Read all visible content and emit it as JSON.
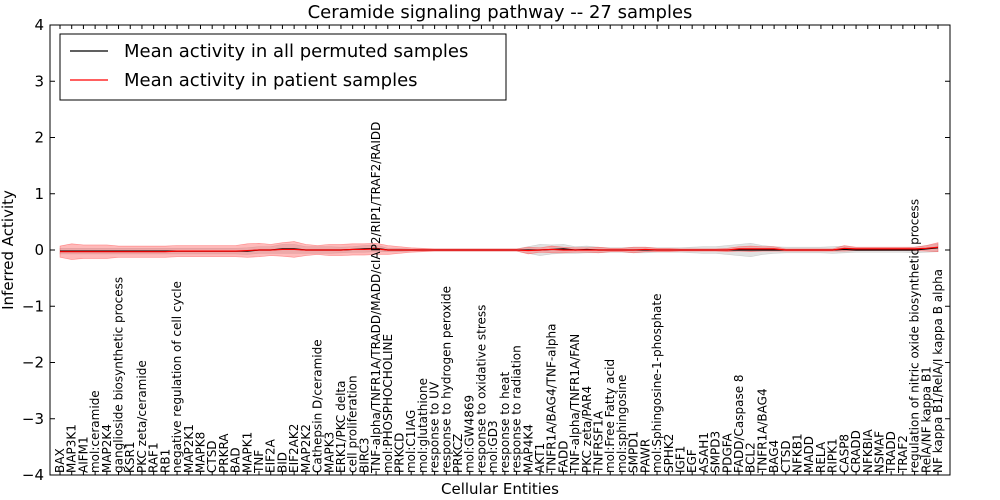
{
  "chart_data": {
    "type": "line",
    "title": "Ceramide signaling pathway -- 27 samples",
    "xlabel": "Cellular Entities",
    "ylabel": "Inferred Activity",
    "ylim": [
      -4,
      4
    ],
    "yticks": [
      4,
      3,
      2,
      1,
      0,
      -1,
      -2,
      -3,
      -4
    ],
    "ytick_labels": [
      "4",
      "3",
      "2",
      "1",
      "0",
      "−1",
      "−2",
      "−3",
      "−4"
    ],
    "legend_position": "upper-left",
    "categories": [
      "BAX",
      "MAP3K1",
      "AIFM1",
      "mol:ceramide",
      "MAP2K4",
      "ganglioside biosynthetic process",
      "KSR1",
      "PKC zeta/ceramide",
      "RAF1",
      "RB1",
      "negative regulation of cell cycle",
      "MAP2K1",
      "MAPK8",
      "CTSD",
      "PRKRA",
      "BAD",
      "MAPK1",
      "TNF",
      "EIF2A",
      "BID",
      "EIF2AK2",
      "MAP2K2",
      "Cathepsin D/ceramide",
      "MAPK3",
      "ERK1/PKC delta",
      "cell proliferation",
      "BIRC3",
      "TNF-alpha/TNFR1A/TRADD/MADD/cIAP2/RIP1/TRAF2/RAIDD",
      "mol:PHOSPHOCHOLINE",
      "PRKCD",
      "mol:C1IAG",
      "mol:glutathione",
      "response to UV",
      "response to hydrogen peroxide",
      "PRKCZ",
      "mol:GW4869",
      "response to oxidative stress",
      "mol:GD3",
      "response to heat",
      "response to radiation",
      "MAP4K4",
      "AKT1",
      "TNFR1A/BAG4/TNF-alpha",
      "FADD",
      "TNF-alpha/TNFR1A/FAN",
      "PKC zeta/PAR4",
      "TNFRSF1A",
      "mol:Free Fatty acid",
      "mol:sphingosine",
      "SMPD1",
      "PAWR",
      "mol:Sphingosine-1-phosphate",
      "SPHK2",
      "IGF1",
      "EGF",
      "ASAH1",
      "SMPD3",
      "PDGFA",
      "FADD/Caspase 8",
      "BCL2",
      "TNFR1A/BAG4",
      "BAG4",
      "CTSD",
      "NFKB1",
      "MADD",
      "RELA",
      "RIPK1",
      "CASP8",
      "CRADD",
      "NFKBIA",
      "NSMAF",
      "TRADD",
      "TRAF2",
      "regulation of nitric oxide biosynthetic process",
      "RelA/NF kappa B1",
      "NF kappa B1/RelA/I kappa B alpha"
    ],
    "series": [
      {
        "name": "Mean activity in all permuted samples",
        "color": "#000000",
        "values": [
          -0.02,
          -0.02,
          -0.02,
          -0.02,
          -0.02,
          -0.02,
          -0.02,
          -0.02,
          -0.02,
          -0.02,
          -0.02,
          -0.02,
          -0.02,
          -0.02,
          -0.02,
          -0.02,
          -0.02,
          0.0,
          0.0,
          0.02,
          0.02,
          0.0,
          0.0,
          0.0,
          0.0,
          0.01,
          0.02,
          0.03,
          0.0,
          0.0,
          0.0,
          0.0,
          0.0,
          0.0,
          0.0,
          0.0,
          0.0,
          0.0,
          0.0,
          0.0,
          0.0,
          0.0,
          0.01,
          0.02,
          0.0,
          0.01,
          0.0,
          0.0,
          0.0,
          0.0,
          0.0,
          0.0,
          0.0,
          0.0,
          0.0,
          0.0,
          0.0,
          0.0,
          0.0,
          0.0,
          0.0,
          0.0,
          0.0,
          0.0,
          0.0,
          0.0,
          0.0,
          0.01,
          0.0,
          0.0,
          0.0,
          0.0,
          0.0,
          0.0,
          0.02,
          0.04
        ],
        "band": [
          0.05,
          0.05,
          0.05,
          0.05,
          0.05,
          0.05,
          0.05,
          0.05,
          0.05,
          0.05,
          0.05,
          0.05,
          0.05,
          0.05,
          0.05,
          0.05,
          0.06,
          0.06,
          0.06,
          0.08,
          0.08,
          0.06,
          0.06,
          0.06,
          0.05,
          0.05,
          0.06,
          0.06,
          0.03,
          0.03,
          0.02,
          0.02,
          0.02,
          0.02,
          0.02,
          0.02,
          0.02,
          0.02,
          0.02,
          0.02,
          0.06,
          0.1,
          0.08,
          0.08,
          0.06,
          0.06,
          0.05,
          0.04,
          0.04,
          0.05,
          0.05,
          0.04,
          0.04,
          0.04,
          0.05,
          0.06,
          0.06,
          0.08,
          0.1,
          0.12,
          0.08,
          0.06,
          0.05,
          0.05,
          0.05,
          0.05,
          0.06,
          0.06,
          0.04,
          0.04,
          0.04,
          0.04,
          0.04,
          0.05,
          0.06,
          0.07
        ]
      },
      {
        "name": "Mean activity in patient samples",
        "color": "#ff0000",
        "values": [
          -0.03,
          -0.03,
          -0.03,
          -0.03,
          -0.03,
          -0.03,
          -0.03,
          -0.03,
          -0.03,
          -0.03,
          -0.02,
          -0.02,
          -0.02,
          -0.02,
          -0.02,
          -0.02,
          -0.01,
          0.0,
          0.0,
          0.01,
          0.01,
          0.0,
          0.0,
          0.0,
          0.0,
          0.01,
          0.01,
          0.02,
          0.0,
          0.0,
          0.0,
          0.0,
          0.0,
          0.0,
          0.0,
          0.0,
          0.0,
          0.0,
          0.0,
          0.0,
          -0.01,
          0.0,
          0.01,
          0.0,
          0.0,
          0.0,
          0.0,
          0.0,
          0.0,
          0.0,
          0.01,
          0.0,
          0.0,
          0.0,
          0.0,
          0.0,
          0.0,
          0.0,
          0.02,
          0.02,
          0.02,
          0.02,
          0.0,
          0.0,
          0.0,
          0.0,
          0.0,
          0.03,
          0.02,
          0.02,
          0.02,
          0.02,
          0.02,
          0.02,
          0.03,
          0.05
        ],
        "band": [
          0.1,
          0.14,
          0.12,
          0.12,
          0.12,
          0.1,
          0.1,
          0.1,
          0.1,
          0.1,
          0.1,
          0.1,
          0.1,
          0.1,
          0.1,
          0.1,
          0.12,
          0.12,
          0.1,
          0.12,
          0.14,
          0.1,
          0.08,
          0.1,
          0.1,
          0.1,
          0.1,
          0.1,
          0.08,
          0.06,
          0.04,
          0.03,
          0.02,
          0.02,
          0.02,
          0.02,
          0.02,
          0.02,
          0.02,
          0.02,
          0.06,
          0.04,
          0.06,
          0.05,
          0.04,
          0.04,
          0.05,
          0.03,
          0.03,
          0.05,
          0.04,
          0.03,
          0.03,
          0.02,
          0.02,
          0.02,
          0.02,
          0.03,
          0.04,
          0.05,
          0.04,
          0.04,
          0.02,
          0.02,
          0.02,
          0.02,
          0.02,
          0.05,
          0.03,
          0.03,
          0.03,
          0.03,
          0.03,
          0.03,
          0.05,
          0.08
        ]
      }
    ]
  }
}
